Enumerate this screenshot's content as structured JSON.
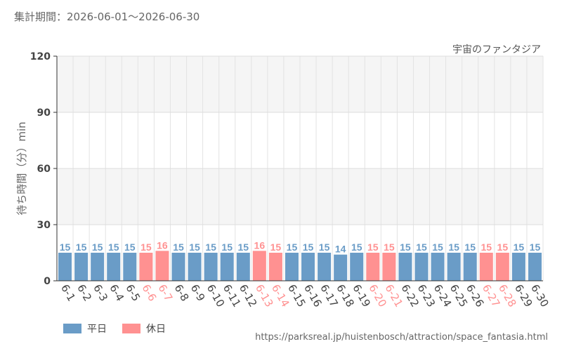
{
  "header": {
    "period_text": "集計期間：2026-06-01～2026-06-30"
  },
  "source_url": "https://parksreal.jp/huistenbosch/attraction/space_fantasia.html",
  "legend": [
    {
      "label": "平日",
      "color": "#6a9cc7"
    },
    {
      "label": "休日",
      "color": "#ff9191"
    }
  ],
  "chart_data": {
    "type": "bar",
    "title": "宇宙のファンタジア",
    "ylabel": "待ち時間（分）min",
    "ylim": [
      0,
      120
    ],
    "yticks": [
      0,
      30,
      60,
      90,
      120
    ],
    "grid": true,
    "categories": [
      "6-1",
      "6-2",
      "6-3",
      "6-4",
      "6-5",
      "6-6",
      "6-7",
      "6-8",
      "6-9",
      "6-10",
      "6-11",
      "6-12",
      "6-13",
      "6-14",
      "6-15",
      "6-16",
      "6-17",
      "6-18",
      "6-19",
      "6-20",
      "6-21",
      "6-22",
      "6-23",
      "6-24",
      "6-25",
      "6-26",
      "6-27",
      "6-28",
      "6-29",
      "6-30"
    ],
    "values": [
      15,
      15,
      15,
      15,
      15,
      15,
      16,
      15,
      15,
      15,
      15,
      15,
      16,
      15,
      15,
      15,
      15,
      14,
      15,
      15,
      15,
      15,
      15,
      15,
      15,
      15,
      15,
      15,
      15,
      15
    ],
    "day_type": [
      "平日",
      "平日",
      "平日",
      "平日",
      "平日",
      "休日",
      "休日",
      "平日",
      "平日",
      "平日",
      "平日",
      "平日",
      "休日",
      "休日",
      "平日",
      "平日",
      "平日",
      "平日",
      "平日",
      "休日",
      "休日",
      "平日",
      "平日",
      "平日",
      "平日",
      "平日",
      "休日",
      "休日",
      "平日",
      "平日"
    ],
    "colors": {
      "平日": "#6a9cc7",
      "休日": "#ff9191"
    }
  }
}
